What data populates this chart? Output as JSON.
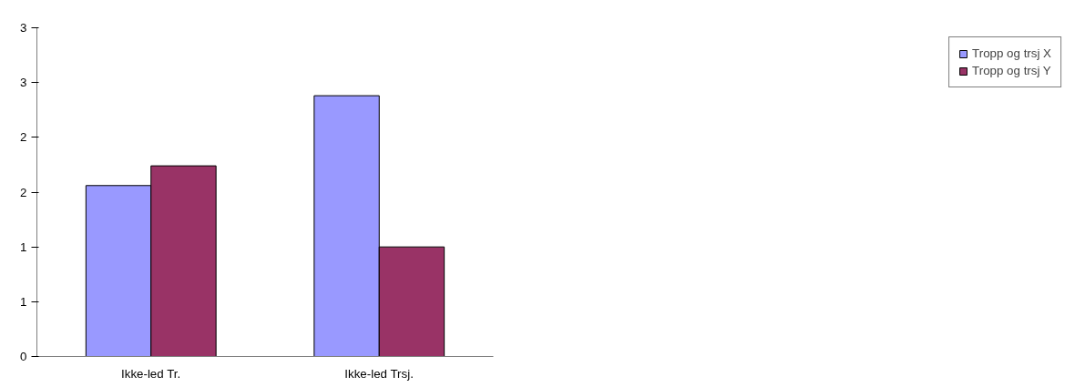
{
  "chart_data": {
    "type": "bar",
    "categories": [
      "Ikke-led Tr.",
      "Ikke-led Trsj."
    ],
    "series": [
      {
        "name": "Tropp og trsj X",
        "color": "#9999ff",
        "values": [
          1.56,
          2.38
        ]
      },
      {
        "name": "Tropp og trsj Y",
        "color": "#993366",
        "values": [
          1.74,
          1.0
        ]
      }
    ],
    "ylim": [
      0,
      3
    ],
    "yticks": [
      0,
      {
        "value": 0.5,
        "label": "1"
      },
      1,
      {
        "value": 1.5,
        "label": "2"
      },
      2,
      {
        "value": 2.5,
        "label": "3"
      },
      3
    ],
    "grid": false,
    "legend": "right"
  }
}
